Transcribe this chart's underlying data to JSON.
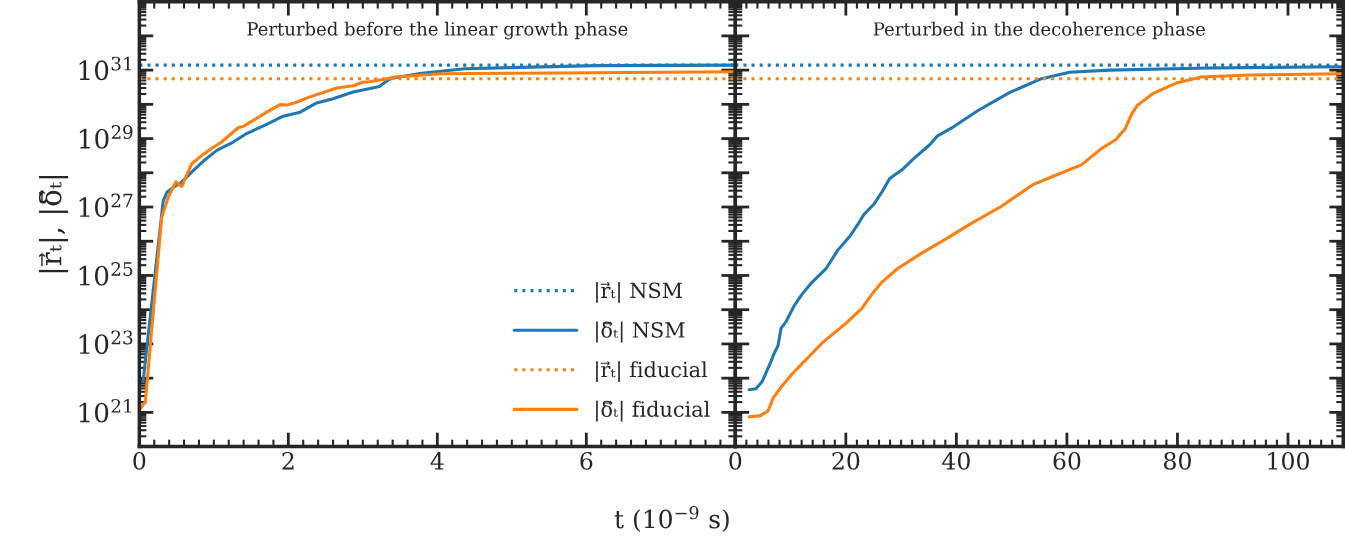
{
  "chart_data": [
    {
      "type": "line",
      "title": "Perturbed before the linear growth phase",
      "ylabel": "|r⃗ₜ|, |δ⃗ₜ|",
      "xlabel": "t (10$^{−9}$ s)",
      "log": "y",
      "xlim": [
        0,
        8
      ],
      "xticks": [
        0,
        2,
        4,
        6,
        {
          "value": 8,
          "label": null
        }
      ],
      "ylim": [
        1e+20,
        1e+33
      ],
      "yticks": [
        {
          "value": 1e+20,
          "label": null
        },
        {
          "value": 1e+21,
          "label": "10$^{21}$"
        },
        {
          "value": 1e+22,
          "label": null
        },
        {
          "value": 1e+23,
          "label": "10$^{23}$"
        },
        {
          "value": 1e+24,
          "label": null
        },
        {
          "value": 1e+25,
          "label": "10$^{25}$"
        },
        {
          "value": 1e+26,
          "label": null
        },
        {
          "value": 1e+27,
          "label": "10$^{27}$"
        },
        {
          "value": 1e+28,
          "label": null
        },
        {
          "value": 1e+29,
          "label": "10$^{29}$"
        },
        {
          "value": 1e+30,
          "label": null
        },
        {
          "value": 1e+31,
          "label": "10$^{31}$"
        },
        {
          "value": 1e+32,
          "label": null
        },
        {
          "value": 1e+33,
          "label": null
        }
      ],
      "legend": "bottom right",
      "series": [
        {
          "name": "|r⃗ₜ| NSM",
          "color": "#1f77b4",
          "line_style": "dotted",
          "x": [
            0,
            8
          ],
          "values": [
            1.4e+31,
            1.4e+31
          ]
        },
        {
          "name": "|δ⃗ₜ| NSM",
          "color": "#1f77b4",
          "line_style": "solid",
          "x": [
            0.05,
            0.32,
            0.37,
            0.46,
            0.57,
            0.73,
            0.86,
            1.04,
            1.26,
            1.44,
            1.71,
            1.93,
            2.16,
            2.38,
            2.6,
            2.87,
            3.13,
            3.22,
            3.36,
            3.43,
            3.79,
            4.37,
            5.1,
            6.14,
            8
          ],
          "values": [
            7.9e+21,
            1.5e+27,
            2.7e+27,
            3.8e+27,
            5.4e+27,
            1.2e+28,
            2.2e+28,
            4.5e+28,
            7.9e+28,
            1.4e+29,
            2.6e+29,
            4.5e+29,
            5.9e+29,
            1.1e+30,
            1.45e+30,
            2.3e+30,
            3e+30,
            3.3e+30,
            5.5e+30,
            6e+30,
            8.1e+30,
            1.1e+31,
            1.2e+31,
            1.35e+31,
            1.4e+31
          ]
        },
        {
          "name": "|r⃗ₜ| fiducial",
          "color": "#ff7f0e",
          "line_style": "dotted",
          "x": [
            0,
            8
          ],
          "values": [
            5.6e+30,
            5.6e+30
          ]
        },
        {
          "name": "|δ⃗ₜ| fiducial",
          "color": "#ff7f0e",
          "line_style": "solid",
          "x": [
            0.01,
            0.08,
            0.3,
            0.39,
            0.49,
            0.57,
            0.7,
            0.86,
            0.99,
            1.1,
            1.33,
            1.4,
            1.53,
            1.71,
            1.89,
            1.98,
            2.11,
            2.27,
            2.65,
            2.87,
            3.0,
            3.09,
            3.31,
            3.43,
            4.05,
            5.1,
            8
          ],
          "values": [
            1.3e+21,
            2e+21,
            5e+26,
            2e+27,
            5.4e+27,
            4e+27,
            1.8e+28,
            3.5e+28,
            5.5e+28,
            7.8e+28,
            2.1e+29,
            2.3e+29,
            3.4e+29,
            5.9e+29,
            9.8e+29,
            9.5e+29,
            1.15e+30,
            1.6e+30,
            3e+30,
            3.5e+30,
            4.4e+30,
            4.6e+30,
            5.5e+30,
            6.3e+30,
            7.8e+30,
            8.1e+30,
            8.9e+30
          ]
        }
      ]
    },
    {
      "type": "line",
      "title": "Perturbed in the decoherence phase",
      "log": "y",
      "tick_labels": "x",
      "xlim": [
        0,
        110
      ],
      "xticks": [
        0,
        20,
        40,
        60,
        80,
        100
      ],
      "ylim": [
        1e+20,
        1e+33
      ],
      "yticks": [
        {
          "value": 1e+20,
          "label": null
        },
        {
          "value": 1e+21,
          "label": null
        },
        {
          "value": 1e+22,
          "label": null
        },
        {
          "value": 1e+23,
          "label": null
        },
        {
          "value": 1e+24,
          "label": null
        },
        {
          "value": 1e+25,
          "label": null
        },
        {
          "value": 1e+26,
          "label": null
        },
        {
          "value": 1e+27,
          "label": null
        },
        {
          "value": 1e+28,
          "label": null
        },
        {
          "value": 1e+29,
          "label": null
        },
        {
          "value": 1e+30,
          "label": null
        },
        {
          "value": 1e+31,
          "label": null
        },
        {
          "value": 1e+32,
          "label": null
        },
        {
          "value": 1e+33,
          "label": null
        }
      ],
      "series": [
        {
          "color": "#1f77b4",
          "line_style": "dotted",
          "x": [
            0,
            110
          ],
          "values": [
            1.4e+31,
            1.4e+31
          ]
        },
        {
          "color": "#1f77b4",
          "line_style": "solid",
          "x": [
            2.51,
            3.74,
            4.83,
            6.27,
            6.99,
            7.71,
            8.29,
            9.16,
            10.6,
            12.05,
            13.86,
            16.38,
            18.55,
            20.72,
            22.17,
            23.25,
            25.05,
            26.5,
            27.94,
            30.11,
            32.28,
            35.17,
            36.6,
            39.5,
            43.84,
            49.6,
            55.4,
            60.5,
            67.7,
            85.7,
            109.6
          ],
          "values": [
            4.6e+21,
            4.9e+21,
            7.8e+21,
            2.6e+22,
            5.1e+22,
            8.7e+22,
            2.9e+23,
            4.4e+23,
            1.26e+24,
            2.8e+24,
            6.3e+24,
            1.55e+25,
            5.5e+25,
            1.4e+26,
            3.1e+26,
            6e+26,
            1.2e+27,
            2.7e+27,
            6.8e+27,
            1.2e+28,
            2.6e+28,
            6.6e+28,
            1.2e+29,
            2.2e+29,
            6.5e+29,
            2.2e+30,
            5.6e+30,
            8.7e+30,
            1e+31,
            1.15e+31,
            1.26e+31
          ]
        },
        {
          "color": "#ff7f0e",
          "line_style": "dotted",
          "x": [
            0,
            110
          ],
          "values": [
            5.6e+30,
            5.6e+30
          ]
        },
        {
          "color": "#ff7f0e",
          "line_style": "solid",
          "x": [
            2.51,
            4.46,
            5.91,
            6.84,
            8.44,
            10.24,
            12.41,
            15.66,
            20.0,
            22.9,
            24.69,
            26.5,
            29.39,
            33.72,
            38.06,
            42.4,
            48.17,
            53.95,
            58.29,
            62.62,
            66.24,
            68.77,
            70.57,
            71.66,
            72.74,
            75.63,
            79.97,
            84.3,
            93.0,
            109.6
          ],
          "values": [
            7.4e+20,
            7.9e+20,
            1.1e+21,
            2.6e+21,
            5.9e+21,
            1.3e+22,
            3e+22,
            1.05e+23,
            4e+23,
            1.1e+24,
            2.8e+24,
            6.3e+24,
            1.6e+25,
            4.5e+25,
            1.15e+26,
            3.1e+26,
            1.05e+27,
            4.6e+27,
            8.9e+27,
            1.7e+28,
            5.1e+28,
            9.1e+28,
            1.95e+29,
            5e+29,
            9.3e+29,
            2.1e+30,
            4.3e+30,
            6.3e+30,
            7.2e+30,
            7.8e+30
          ]
        }
      ]
    }
  ]
}
